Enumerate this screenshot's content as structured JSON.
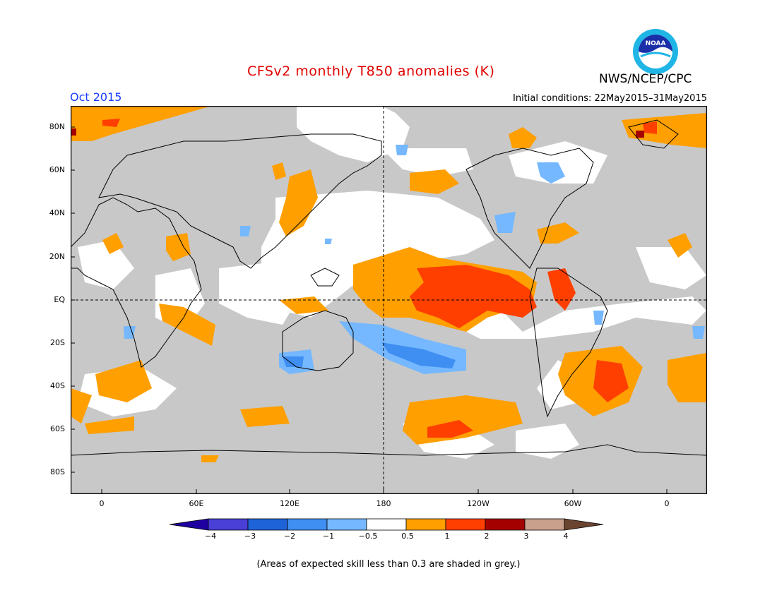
{
  "header": {
    "title": "CFSv2 monthly T850 anomalies (K)",
    "agency": "NWS/NCEP/CPC",
    "logo_text": "NOAA",
    "valid_month": "Oct 2015",
    "initial_conditions": "Initial conditions: 22May2015–31May2015"
  },
  "map": {
    "projection": "cylindrical equidistant",
    "lat_ticks": [
      "80N",
      "60N",
      "40N",
      "20N",
      "EQ",
      "20S",
      "40S",
      "60S",
      "80S"
    ],
    "lon_ticks": [
      "0",
      "60E",
      "120E",
      "180",
      "120W",
      "60W",
      "0"
    ],
    "reference_lines": [
      "EQ",
      "180"
    ],
    "colors": {
      "grey_skill_mask": "#c8c8c8",
      "neutral": "#ffffff",
      "pos_0_5_1": "#ff9f00",
      "pos_1_2": "#ff3f00",
      "pos_2_3": "#a50000",
      "neg_0_5_1": "#75b8ff",
      "neg_1_2": "#3f8ff2"
    }
  },
  "colorbar": {
    "labels": [
      "−4",
      "−3",
      "−2",
      "−1",
      "−0.5",
      "0.5",
      "1",
      "2",
      "3",
      "4"
    ],
    "colors": [
      "#1e00a0",
      "#4a3fd6",
      "#1f63d8",
      "#3f8ff2",
      "#75b8ff",
      "#ffffff",
      "#ff9f00",
      "#ff3f00",
      "#a50000",
      "#c9a08c",
      "#6b4430"
    ]
  },
  "footnote": "(Areas of expected skill less than 0.3 are shaded in grey.)"
}
